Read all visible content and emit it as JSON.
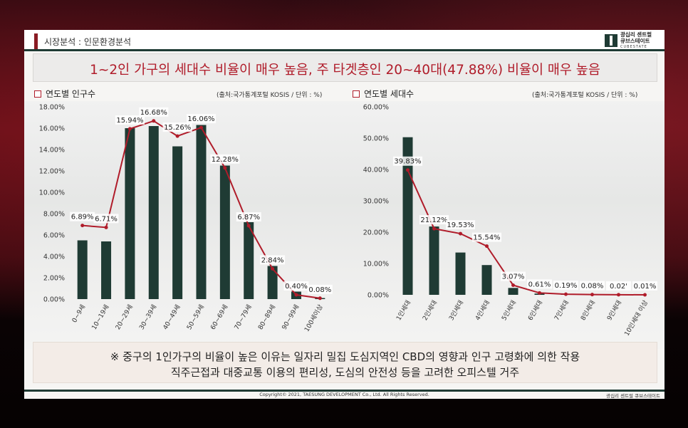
{
  "header": {
    "section_label": "시장분석 : 인문환경분석",
    "logo_line1": "광십리 센트럴",
    "logo_line2": "큐브스테이트",
    "logo_line3": "CUBESTATE"
  },
  "headline": "1~2인 가구의 세대수 비율이 매우 높음, 주 타겟층인 20~40대(47.88%) 비율이 매우 높음",
  "chart_data": [
    {
      "type": "bar",
      "title": "연도별 인구수",
      "source": "(출처:국가통계포털 KOSIS / 단위 : %)",
      "categories": [
        "0~9세",
        "10~19세",
        "20~29세",
        "30~39세",
        "40~49세",
        "50~59세",
        "60~69세",
        "70~79세",
        "80~89세",
        "90~99세",
        "100세이상"
      ],
      "values": [
        5.5,
        5.4,
        16.0,
        16.2,
        14.3,
        16.3,
        12.5,
        7.2,
        3.1,
        0.7,
        0.1
      ],
      "line_values": [
        6.89,
        6.71,
        15.94,
        16.68,
        15.26,
        16.06,
        12.28,
        6.87,
        2.84,
        0.4,
        0.08
      ],
      "line_labels": [
        "6.89%",
        "6.71%",
        "15.94%",
        "16.68%",
        "15.26%",
        "16.06%",
        "12.28%",
        "6.87%",
        "2.84%",
        "0.40%",
        "0.08%"
      ],
      "ylim": [
        0,
        18
      ],
      "yticks": [
        "0.00%",
        "2.00%",
        "4.00%",
        "6.00%",
        "8.00%",
        "10.00%",
        "12.00%",
        "14.00%",
        "16.00%",
        "18.00%"
      ],
      "colors": {
        "bar": "#1f3b34",
        "line": "#b01c2a"
      }
    },
    {
      "type": "bar",
      "title": "연도별 세대수",
      "source": "(출처:국가통계포털 KOSIS / 단위 : %)",
      "categories": [
        "1인세대",
        "2인세대",
        "3인세대",
        "4인세대",
        "5인세대",
        "6인세대",
        "7인세대",
        "8인세대",
        "9인세대",
        "10인세대 이상"
      ],
      "values": [
        50.3,
        21.8,
        13.5,
        9.5,
        2.2,
        0.4,
        0.1,
        0.05,
        0.01,
        0.01
      ],
      "line_values": [
        39.83,
        21.12,
        19.53,
        15.54,
        3.07,
        0.61,
        0.19,
        0.08,
        0.02,
        0.01
      ],
      "line_labels": [
        "39.83%",
        "21.12%",
        "19.53%",
        "15.54%",
        "3.07%",
        "0.61%",
        "0.19%",
        "0.08%",
        "0.02'",
        "0.01%"
      ],
      "ylim": [
        0,
        60
      ],
      "yticks": [
        "0.00%",
        "10.00%",
        "20.00%",
        "30.00%",
        "40.00%",
        "50.00%",
        "60.00%"
      ],
      "colors": {
        "bar": "#1f3b34",
        "line": "#b01c2a"
      }
    }
  ],
  "note": {
    "line1": "※ 중구의 1인가구의 비율이 높은 이유는 일자리 밀집 도심지역인 CBD의 영향과 인구 고령화에 의한 작용",
    "line2": "직주근접과 대중교통 이용의 편리성, 도심의 안전성 등을 고려한 오피스텔 거주"
  },
  "footer": {
    "copyright": "Copyright© 2021, TAESUNG DEVELOPMENT Co., Ltd. All Rights Reserved.",
    "right": "광십리 센트럴 큐브스테이트"
  }
}
